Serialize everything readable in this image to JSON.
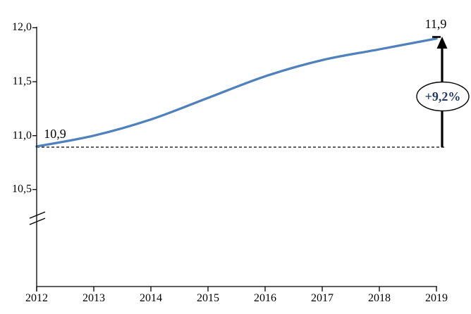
{
  "chart_data": {
    "type": "line",
    "title": "",
    "categories": [
      "2012",
      "2013",
      "2014",
      "2015",
      "2016",
      "2017",
      "2018",
      "2019"
    ],
    "values": [
      10.9,
      11.0,
      11.15,
      11.35,
      11.55,
      11.7,
      11.8,
      11.9
    ],
    "xlabel": "",
    "ylabel": "",
    "y_axis": {
      "ticks": [
        {
          "label": "12,0",
          "value": 12.0
        },
        {
          "label": "11,5",
          "value": 11.5
        },
        {
          "label": "11,0",
          "value": 11.0
        },
        {
          "label": "10,5",
          "value": 10.5
        }
      ],
      "visible_range": [
        10.5,
        12.0
      ],
      "axis_break": true
    },
    "grid": "off",
    "legend": "none",
    "line_color": "#4F81BD",
    "annotations": {
      "start_value_label": "10,9",
      "end_value_label": "11,9",
      "growth_label": "+9,2%",
      "growth_label_color": "#1F3864",
      "baseline_style": "dashed",
      "arrow_color": "#000000"
    }
  }
}
